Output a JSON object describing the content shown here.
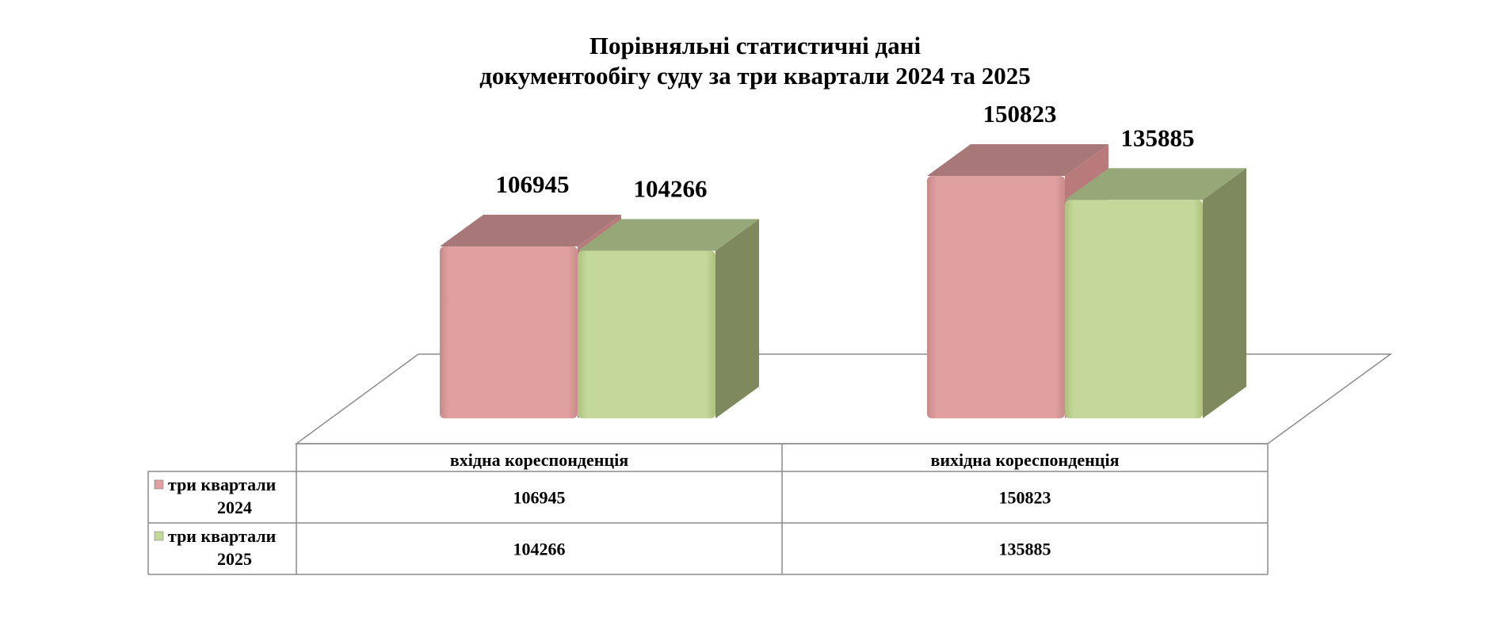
{
  "chart_data": {
    "type": "bar",
    "title": "Порівняльні статистичні дані\nдокументообігу суду за три квартали 2024 та 2025",
    "categories": [
      "вхідна кореспонденція",
      "вихідна кореспонденція"
    ],
    "series": [
      {
        "name": "три квартали 2024",
        "values": [
          106945,
          150823
        ],
        "color": "#e0a0a0"
      },
      {
        "name": "три квартали 2025",
        "values": [
          104266,
          135885
        ],
        "color": "#c4d89a"
      }
    ],
    "ylim": [
      0,
      150823
    ],
    "grid": false,
    "legend": "data-table-left",
    "three_d": true
  }
}
